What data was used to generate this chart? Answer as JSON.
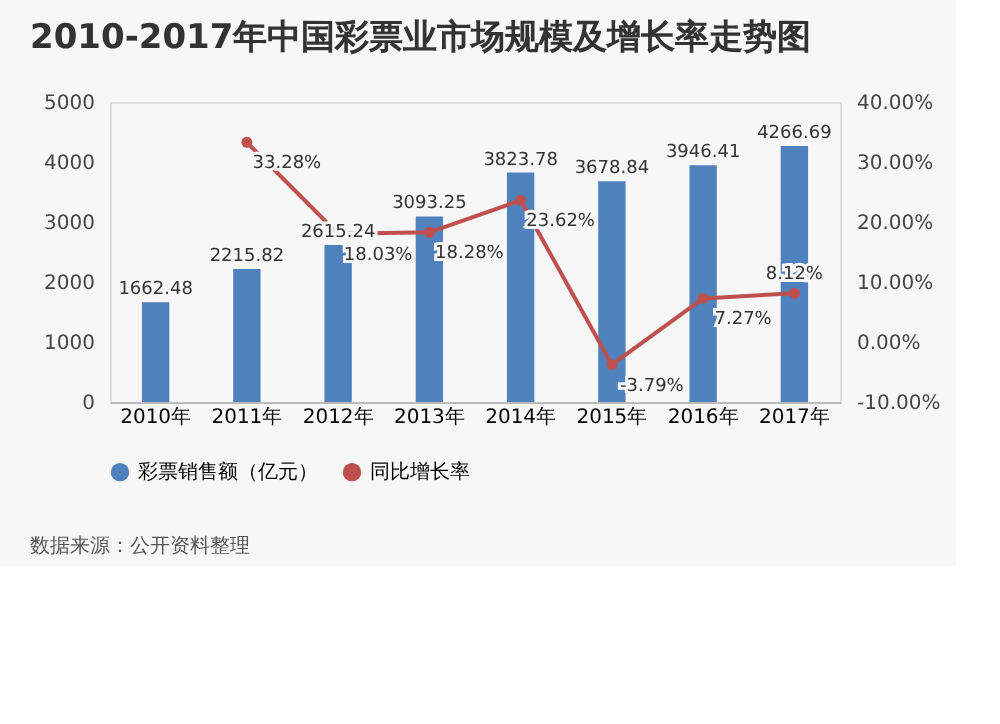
{
  "chart_data": {
    "type": "bar",
    "title": "2010-2017年中国彩票业市场规模及增长率走势图",
    "categories": [
      "2010年",
      "2011年",
      "2012年",
      "2013年",
      "2014年",
      "2015年",
      "2016年",
      "2017年"
    ],
    "series": [
      {
        "name": "彩票销售额（亿元）",
        "type": "bar",
        "color": "#4f81bd",
        "values": [
          1662.48,
          2215.82,
          2615.24,
          3093.25,
          3823.78,
          3678.84,
          3946.41,
          4266.69
        ],
        "value_labels": [
          "1662.48",
          "2215.82",
          "2615.24",
          "3093.25",
          "3823.78",
          "3678.84",
          "3946.41",
          "4266.69"
        ]
      },
      {
        "name": "同比增长率",
        "type": "line",
        "axis": "y2",
        "color": "#c0504d",
        "marker": "circle",
        "values": [
          null,
          33.28,
          18.03,
          18.28,
          23.62,
          -3.79,
          7.27,
          8.12
        ],
        "value_labels": [
          null,
          "33.28%",
          "18.03%",
          "18.28%",
          "23.62%",
          "-3.79%",
          "7.27%",
          "8.12%"
        ]
      }
    ],
    "ylim": [
      0,
      5000
    ],
    "yticks": [
      0,
      1000,
      2000,
      3000,
      4000,
      5000
    ],
    "y2lim": [
      -10,
      40
    ],
    "y2ticks": [
      {
        "value": -10,
        "label": "-10.00%"
      },
      {
        "value": 0,
        "label": "0.00%"
      },
      {
        "value": 10,
        "label": "10.00%"
      },
      {
        "value": 20,
        "label": "20.00%"
      },
      {
        "value": 30,
        "label": "30.00%"
      },
      {
        "value": 40,
        "label": "40.00%"
      }
    ],
    "legend": "bottom",
    "annotations": [
      "数据来源：公开资料整理"
    ]
  }
}
